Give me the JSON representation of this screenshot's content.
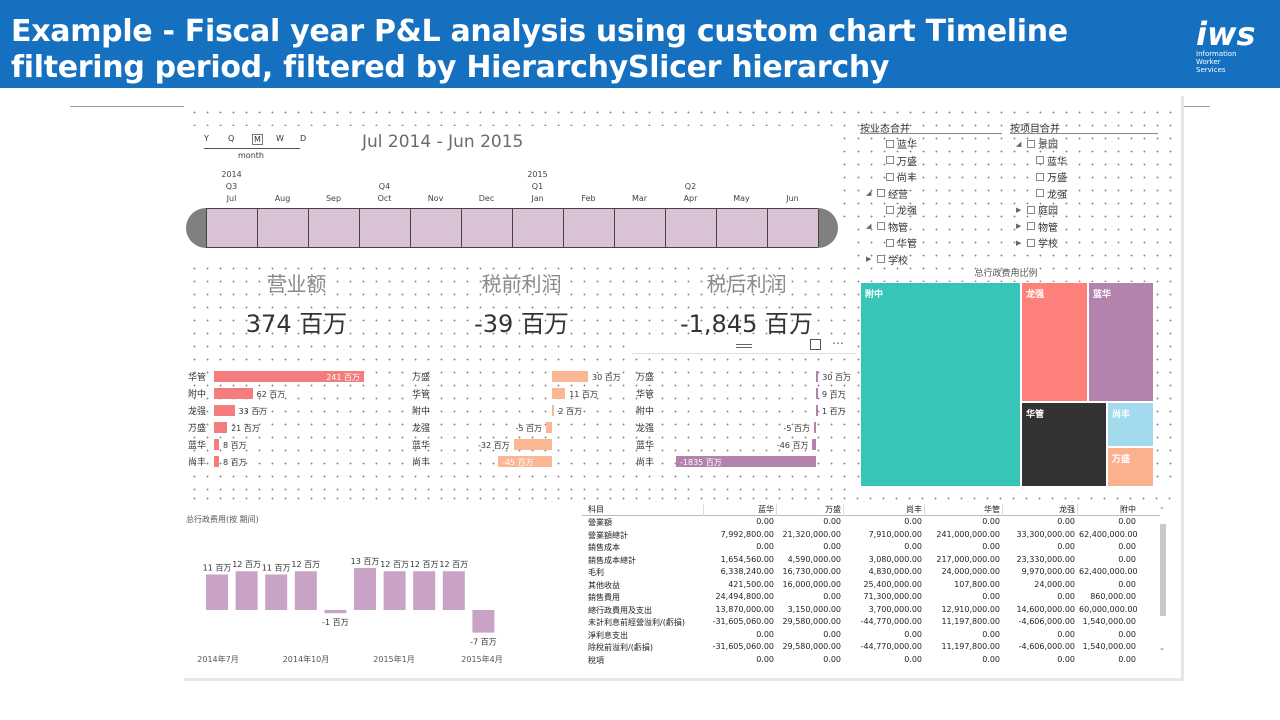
{
  "header": {
    "title": "Example - Fiscal year P&L analysis using custom chart Timeline filtering period, filtered by HierarchySlicer hierarchy",
    "logo_mark": "iws",
    "logo_sub_1": "Information",
    "logo_sub_2": "Worker",
    "logo_sub_3": "Services"
  },
  "timeline": {
    "granularity": [
      "Y",
      "Q",
      "M",
      "W",
      "D"
    ],
    "selected_granularity": "M",
    "granularity_label": "month",
    "period_label": "Jul 2014 - Jun 2015",
    "year_labels": [
      {
        "text": "2014",
        "at": "Jul"
      },
      {
        "text": "2015",
        "at": "Jan"
      }
    ],
    "quarter_labels": [
      {
        "text": "Q3",
        "at": "Jul"
      },
      {
        "text": "Q4",
        "at": "Oct"
      },
      {
        "text": "Q1",
        "at": "Jan"
      },
      {
        "text": "Q2",
        "at": "Apr"
      }
    ],
    "months": [
      "Jul",
      "Aug",
      "Sep",
      "Oct",
      "Nov",
      "Dec",
      "Jan",
      "Feb",
      "Mar",
      "Apr",
      "May",
      "Jun"
    ],
    "cell_color": "#d9c1d6"
  },
  "kpis": [
    {
      "title": "营业额",
      "value": "374 百万"
    },
    {
      "title": "税前利润",
      "value": "-39 百万"
    },
    {
      "title": "税后利润",
      "value": "-1,845 百万"
    }
  ],
  "bar_charts": [
    {
      "color": "#f47c7c",
      "rows": [
        {
          "label": "华管",
          "value": 241,
          "text": "241 百万"
        },
        {
          "label": "附中",
          "value": 62,
          "text": "62 百万"
        },
        {
          "label": "龙强",
          "value": 33,
          "text": "33 百万"
        },
        {
          "label": "万盛",
          "value": 21,
          "text": "21 百万"
        },
        {
          "label": "蓝华",
          "value": 8,
          "text": "8 百万"
        },
        {
          "label": "尚丰",
          "value": 8,
          "text": "8 百万"
        }
      ]
    },
    {
      "color": "#fbb694",
      "rows": [
        {
          "label": "万盛",
          "value": 30,
          "text": "30 百万"
        },
        {
          "label": "华管",
          "value": 11,
          "text": "11 百万"
        },
        {
          "label": "附中",
          "value": 2,
          "text": "2 百万"
        },
        {
          "label": "龙强",
          "value": -5,
          "text": "-5 百万"
        },
        {
          "label": "蓝华",
          "value": -32,
          "text": "-32 百万"
        },
        {
          "label": "尚丰",
          "value": -45,
          "text": "-45 百万"
        }
      ]
    },
    {
      "color": "#b482ad",
      "rows": [
        {
          "label": "万盛",
          "value": 30,
          "text": "30 百万"
        },
        {
          "label": "华管",
          "value": 9,
          "text": "9 百万"
        },
        {
          "label": "附中",
          "value": 1,
          "text": "1 百万"
        },
        {
          "label": "龙强",
          "value": -5,
          "text": "-5 百万"
        },
        {
          "label": "蓝华",
          "value": -46,
          "text": "-46 百万"
        },
        {
          "label": "尚丰",
          "value": -1835,
          "text": "-1835 百万"
        }
      ]
    }
  ],
  "slicer_business": {
    "title": "按业态合并",
    "items": [
      {
        "label": "蓝华",
        "level": 1,
        "arrow": ""
      },
      {
        "label": "万盛",
        "level": 1,
        "arrow": ""
      },
      {
        "label": "尚丰",
        "level": 1,
        "arrow": ""
      },
      {
        "label": "经营",
        "level": 0,
        "arrow": "◢"
      },
      {
        "label": "龙强",
        "level": 1,
        "arrow": ""
      },
      {
        "label": "物管",
        "level": 0,
        "arrow": "◢"
      },
      {
        "label": "华管",
        "level": 1,
        "arrow": ""
      },
      {
        "label": "学校",
        "level": 0,
        "arrow": "▶"
      }
    ]
  },
  "slicer_project": {
    "title": "按项目合并",
    "items": [
      {
        "label": "景园",
        "level": 0,
        "arrow": "◢"
      },
      {
        "label": "蓝华",
        "level": 1,
        "arrow": ""
      },
      {
        "label": "万盛",
        "level": 1,
        "arrow": ""
      },
      {
        "label": "龙强",
        "level": 1,
        "arrow": ""
      },
      {
        "label": "庭园",
        "level": 0,
        "arrow": "▶"
      },
      {
        "label": "物管",
        "level": 0,
        "arrow": "▶"
      },
      {
        "label": "学校",
        "level": 0,
        "arrow": "▶"
      }
    ]
  },
  "treemap": {
    "title": "总行政费用比例",
    "tiles": [
      {
        "label": "附中",
        "color": "#37c5b7"
      },
      {
        "label": "龙强",
        "color": "#fd807a"
      },
      {
        "label": "蓝华",
        "color": "#b383ae"
      },
      {
        "label": "华管",
        "color": "#333333"
      },
      {
        "label": "尚丰",
        "color": "#a4daed"
      },
      {
        "label": "万盛",
        "color": "#fbb08e"
      }
    ]
  },
  "monthly_chart": {
    "title": "总行政费用(按 期间)",
    "color": "#c9a3c6",
    "values": [
      11,
      12,
      11,
      12,
      -1,
      13,
      12,
      12,
      12,
      -7
    ],
    "labels": [
      "11 百万",
      "12 百万",
      "11 百万",
      "12 百万",
      "-1 百万",
      "13 百万",
      "12 百万",
      "12 百万",
      "12 百万",
      "-7 百万"
    ],
    "x_labels": [
      "2014年7月",
      "2014年10月",
      "2015年1月",
      "2015年4月"
    ]
  },
  "matrix": {
    "headers": [
      "科目",
      "蓝华",
      "万盛",
      "尚丰",
      "华管",
      "龙强",
      "附中"
    ],
    "rows": [
      [
        "營業額",
        "0.00",
        "0.00",
        "0.00",
        "0.00",
        "0.00",
        "0.00"
      ],
      [
        "營業額總計",
        "7,992,800.00",
        "21,320,000.00",
        "7,910,000.00",
        "241,000,000.00",
        "33,300,000.00",
        "62,400,000.00"
      ],
      [
        "銷售成本",
        "0.00",
        "0.00",
        "0.00",
        "0.00",
        "0.00",
        "0.00"
      ],
      [
        "銷售成本總計",
        "1,654,560.00",
        "4,590,000.00",
        "3,080,000.00",
        "217,000,000.00",
        "23,330,000.00",
        "0.00"
      ],
      [
        "毛利",
        "6,338,240.00",
        "16,730,000.00",
        "4,830,000.00",
        "24,000,000.00",
        "9,970,000.00",
        "62,400,000.00"
      ],
      [
        "其他收益",
        "421,500.00",
        "16,000,000.00",
        "25,400,000.00",
        "107,800.00",
        "24,000.00",
        "0.00"
      ],
      [
        "銷售費用",
        "24,494,800.00",
        "0.00",
        "71,300,000.00",
        "0.00",
        "0.00",
        "860,000.00"
      ],
      [
        "總行政費用及支出",
        "13,870,000.00",
        "3,150,000.00",
        "3,700,000.00",
        "12,910,000.00",
        "14,600,000.00",
        "60,000,000.00"
      ],
      [
        "未計利息前經營溢利/(虧損)",
        "-31,605,060.00",
        "29,580,000.00",
        "-44,770,000.00",
        "11,197,800.00",
        "-4,606,000.00",
        "1,540,000.00"
      ],
      [
        "淨利息支出",
        "0.00",
        "0.00",
        "0.00",
        "0.00",
        "0.00",
        "0.00"
      ],
      [
        "除稅前溢利/(虧損)",
        "-31,605,060.00",
        "29,580,000.00",
        "-44,770,000.00",
        "11,197,800.00",
        "-4,606,000.00",
        "1,540,000.00"
      ],
      [
        "稅項",
        "0.00",
        "0.00",
        "0.00",
        "0.00",
        "0.00",
        "0.00"
      ]
    ]
  }
}
